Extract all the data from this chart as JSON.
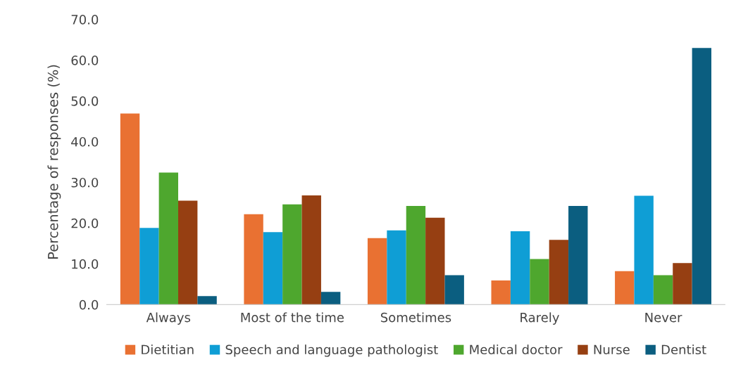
{
  "chart_data": {
    "type": "bar",
    "ylabel": "Percentage of responses (%)",
    "categories": [
      "Always",
      "Most of the time",
      "Sometimes",
      "Rarely",
      "Never"
    ],
    "series": [
      {
        "name": "Dietitian",
        "color": "#e97132",
        "values": [
          46.9,
          22.2,
          16.3,
          5.9,
          8.2
        ]
      },
      {
        "name": "Speech and language pathologist",
        "color": "#0f9ed5",
        "values": [
          18.8,
          17.8,
          18.2,
          18.0,
          26.7
        ]
      },
      {
        "name": "Medical doctor",
        "color": "#4ea72e",
        "values": [
          32.4,
          24.6,
          24.2,
          11.2,
          7.2
        ]
      },
      {
        "name": "Nurse",
        "color": "#963f12",
        "values": [
          25.5,
          26.8,
          21.3,
          15.9,
          10.2
        ]
      },
      {
        "name": "Dentist",
        "color": "#0b5e80",
        "values": [
          2.1,
          3.1,
          7.2,
          24.2,
          63.0
        ]
      }
    ],
    "ylim": [
      0,
      70
    ],
    "yticks": [
      {
        "value": 0,
        "label": "0.0"
      },
      {
        "value": 10,
        "label": "10.0"
      },
      {
        "value": 20,
        "label": "20.0"
      },
      {
        "value": 30,
        "label": "30.0"
      },
      {
        "value": 40,
        "label": "40.0"
      },
      {
        "value": 50,
        "label": "50.0"
      },
      {
        "value": 60,
        "label": "60.0"
      },
      {
        "value": 70,
        "label": "70.0"
      }
    ],
    "grid": false,
    "legend": "bottom"
  }
}
